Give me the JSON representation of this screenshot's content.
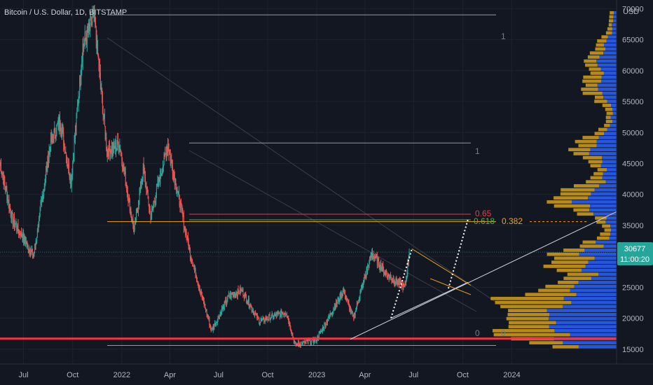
{
  "header": {
    "title": "Bitcoin / U.S. Dollar, 1D, BITSTAMP"
  },
  "axis": {
    "currency": "USD"
  },
  "price_badge": {
    "price": "30677",
    "countdown": "11:00:20"
  },
  "colors": {
    "background": "#131722",
    "grid": "#1e222d",
    "up": "#26a69a",
    "down": "#ef5350",
    "volume_up": "#2962ff",
    "volume_down": "#d4a017",
    "support": "#f23645",
    "fib_065": "#f23645",
    "fib_0618": "#4caf50",
    "fib_0382": "#f0a30a",
    "badge": "#26a69a"
  },
  "fib_labels": {
    "top_a": "1",
    "top_b": "1",
    "zero_a": "0",
    "zero_b": "0",
    "f065": "0.65",
    "f0618": "0.618",
    "f0382": "0.382"
  },
  "chart_data": {
    "type": "candlestick",
    "title": "Bitcoin / U.S. Dollar, 1D, BITSTAMP",
    "y_axis": {
      "label": "USD",
      "ticks": [
        15000,
        20000,
        25000,
        30000,
        35000,
        40000,
        45000,
        50000,
        55000,
        60000,
        65000,
        70000
      ],
      "range": [
        12600,
        71400
      ]
    },
    "x_axis": {
      "ticks": [
        "Jul",
        "Oct",
        "2022",
        "Apr",
        "Jul",
        "Oct",
        "2023",
        "Apr",
        "Jul",
        "Oct",
        "2024"
      ],
      "range": [
        "2021-05-18",
        "2024-07-15"
      ]
    },
    "price_path": [
      [
        "2021-05-18",
        45000
      ],
      [
        "2021-06-10",
        36000
      ],
      [
        "2021-07-20",
        30000
      ],
      [
        "2021-08-20",
        48000
      ],
      [
        "2021-09-07",
        52000
      ],
      [
        "2021-09-28",
        42000
      ],
      [
        "2021-10-20",
        64000
      ],
      [
        "2021-11-10",
        68800
      ],
      [
        "2021-12-04",
        47000
      ],
      [
        "2021-12-28",
        48000
      ],
      [
        "2022-01-24",
        34000
      ],
      [
        "2022-02-10",
        44000
      ],
      [
        "2022-02-24",
        36500
      ],
      [
        "2022-03-28",
        48000
      ],
      [
        "2022-05-10",
        30000
      ],
      [
        "2022-06-18",
        18000
      ],
      [
        "2022-07-20",
        23500
      ],
      [
        "2022-08-14",
        24500
      ],
      [
        "2022-09-15",
        19500
      ],
      [
        "2022-11-05",
        21000
      ],
      [
        "2022-11-21",
        15700
      ],
      [
        "2022-12-31",
        16500
      ],
      [
        "2023-02-20",
        24500
      ],
      [
        "2023-03-10",
        20000
      ],
      [
        "2023-04-14",
        30500
      ],
      [
        "2023-05-12",
        27000
      ],
      [
        "2023-06-15",
        25000
      ],
      [
        "2023-06-23",
        30677
      ]
    ],
    "fib_levels": [
      {
        "label": "0.65",
        "price": 36800
      },
      {
        "label": "0.618",
        "price": 35900
      },
      {
        "label": "0.382",
        "price": 35600
      }
    ],
    "fib_retracement_1": {
      "high": 69000,
      "low": 15600,
      "high_label": "1",
      "low_label": "0"
    },
    "fib_retracement_2": {
      "high": 48300,
      "low": 15600,
      "high_label": "1",
      "low_label": "0"
    },
    "support_level": 16700,
    "last_price": 30677
  }
}
